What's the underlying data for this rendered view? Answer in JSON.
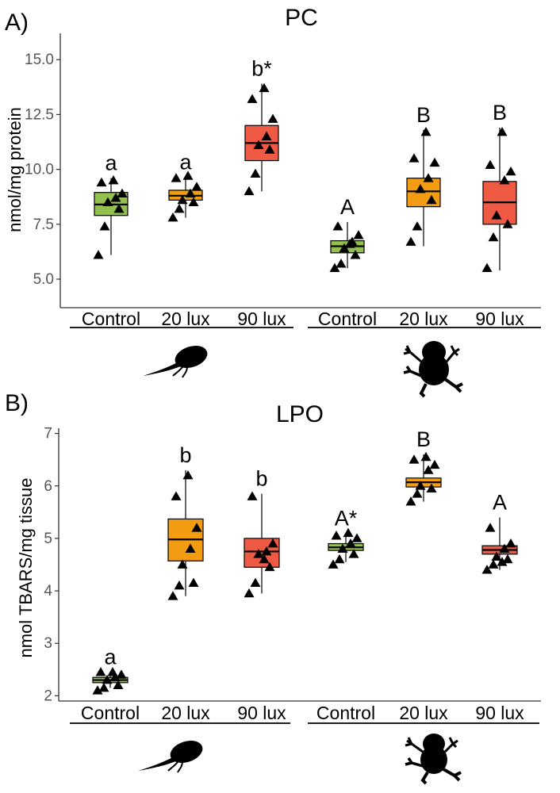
{
  "colors": {
    "control": "#93c04f",
    "lux20": "#f39c11",
    "lux90": "#ef5a44",
    "outline": "#000000"
  },
  "icons": {
    "tadpole": "tadpole-silhouette-icon",
    "frog": "frog-silhouette-icon"
  },
  "chart_data": [
    {
      "panel_label": "A)",
      "type": "box",
      "title": "PC",
      "ylabel": "nmol/mg protein",
      "xlabel": "",
      "ylim": [
        3.7,
        16.2
      ],
      "yticks": [
        5.0,
        7.5,
        10.0,
        12.5,
        15.0
      ],
      "ytick_labels": [
        "5.0",
        "7.5",
        "10.0",
        "12.5",
        "15.0"
      ],
      "groups": [
        {
          "name": "tadpole",
          "icon": "tadpole-silhouette-icon"
        },
        {
          "name": "froglet",
          "icon": "frog-silhouette-icon"
        }
      ],
      "categories": [
        "Control",
        "20 lux",
        "90 lux",
        "Control",
        "20 lux",
        "90 lux"
      ],
      "boxes": [
        {
          "label": "Control",
          "group": "tadpole",
          "color": "control",
          "min": 6.1,
          "q1": 7.9,
          "median": 8.4,
          "q3": 8.95,
          "max": 9.6,
          "points": [
            6.1,
            7.4,
            8.2,
            8.5,
            8.7,
            8.9,
            9.4,
            9.5
          ],
          "sig": "a"
        },
        {
          "label": "20 lux",
          "group": "tadpole",
          "color": "lux20",
          "min": 7.8,
          "q1": 8.6,
          "median": 8.8,
          "q3": 9.05,
          "max": 9.65,
          "points": [
            7.8,
            8.2,
            8.5,
            8.6,
            8.9,
            9.2,
            9.6,
            9.7
          ],
          "sig": "a"
        },
        {
          "label": "90 lux",
          "group": "tadpole",
          "color": "lux90",
          "min": 9.0,
          "q1": 10.4,
          "median": 11.2,
          "q3": 12.0,
          "max": 13.9,
          "points": [
            9.0,
            9.8,
            10.9,
            11.1,
            11.5,
            12.3,
            13.2,
            13.7
          ],
          "sig": "b*"
        },
        {
          "label": "Control",
          "group": "froglet",
          "color": "control",
          "min": 5.5,
          "q1": 6.2,
          "median": 6.5,
          "q3": 6.75,
          "max": 7.6,
          "points": [
            5.5,
            5.7,
            6.1,
            6.4,
            6.7,
            7.0,
            7.4,
            6.6
          ],
          "sig": "A"
        },
        {
          "label": "20 lux",
          "group": "froglet",
          "color": "lux20",
          "min": 6.5,
          "q1": 8.3,
          "median": 9.0,
          "q3": 9.6,
          "max": 11.8,
          "points": [
            6.7,
            7.4,
            8.6,
            9.1,
            9.6,
            10.3,
            10.5,
            11.7
          ],
          "sig": "B"
        },
        {
          "label": "90 lux",
          "group": "froglet",
          "color": "lux90",
          "min": 5.4,
          "q1": 7.5,
          "median": 8.5,
          "q3": 9.45,
          "max": 11.9,
          "points": [
            5.5,
            6.9,
            7.5,
            7.9,
            9.5,
            9.9,
            10.2,
            11.7
          ],
          "sig": "B"
        }
      ]
    },
    {
      "panel_label": "B)",
      "type": "box",
      "title": "LPO",
      "ylabel": "nmol TBARS/mg tissue",
      "xlabel": "",
      "ylim": [
        1.9,
        7.1
      ],
      "yticks": [
        2,
        3,
        4,
        5,
        6,
        7
      ],
      "ytick_labels": [
        "2",
        "3",
        "4",
        "5",
        "6",
        "7"
      ],
      "groups": [
        {
          "name": "tadpole",
          "icon": "tadpole-silhouette-icon"
        },
        {
          "name": "froglet",
          "icon": "frog-silhouette-icon"
        }
      ],
      "categories": [
        "Control",
        "20 lux",
        "90 lux",
        "Control",
        "20 lux",
        "90 lux"
      ],
      "boxes": [
        {
          "label": "Control",
          "group": "tadpole",
          "color": "control",
          "min": 2.15,
          "q1": 2.25,
          "median": 2.3,
          "q3": 2.35,
          "max": 2.45,
          "points": [
            2.1,
            2.15,
            2.2,
            2.3,
            2.35,
            2.4,
            2.45,
            2.45
          ],
          "sig": "a"
        },
        {
          "label": "20 lux",
          "group": "tadpole",
          "color": "lux20",
          "min": 3.9,
          "q1": 4.57,
          "median": 4.98,
          "q3": 5.37,
          "max": 6.3,
          "points": [
            3.9,
            4.1,
            4.15,
            4.5,
            4.8,
            5.2,
            5.8,
            6.2
          ],
          "sig": "b"
        },
        {
          "label": "90 lux",
          "group": "tadpole",
          "color": "lux90",
          "min": 3.95,
          "q1": 4.45,
          "median": 4.75,
          "q3": 5.0,
          "max": 5.85,
          "points": [
            3.95,
            4.15,
            4.45,
            4.7,
            4.75,
            4.9,
            5.8,
            4.6
          ],
          "sig": "b"
        },
        {
          "label": "Control",
          "group": "froglet",
          "color": "control",
          "min": 4.55,
          "q1": 4.77,
          "median": 4.83,
          "q3": 4.9,
          "max": 5.1,
          "points": [
            4.5,
            4.6,
            4.7,
            4.8,
            4.9,
            5.0,
            5.05,
            5.1
          ],
          "sig": "A*"
        },
        {
          "label": "20 lux",
          "group": "froglet",
          "color": "lux20",
          "min": 5.7,
          "q1": 5.98,
          "median": 6.07,
          "q3": 6.15,
          "max": 6.6,
          "points": [
            5.7,
            5.85,
            5.95,
            6.0,
            6.3,
            6.4,
            6.5,
            6.55
          ],
          "sig": "B"
        },
        {
          "label": "90 lux",
          "group": "froglet",
          "color": "lux90",
          "min": 4.4,
          "q1": 4.7,
          "median": 4.78,
          "q3": 4.86,
          "max": 5.4,
          "points": [
            4.4,
            4.5,
            4.6,
            4.65,
            4.8,
            4.9,
            5.2,
            4.55
          ],
          "sig": "A"
        }
      ]
    }
  ]
}
